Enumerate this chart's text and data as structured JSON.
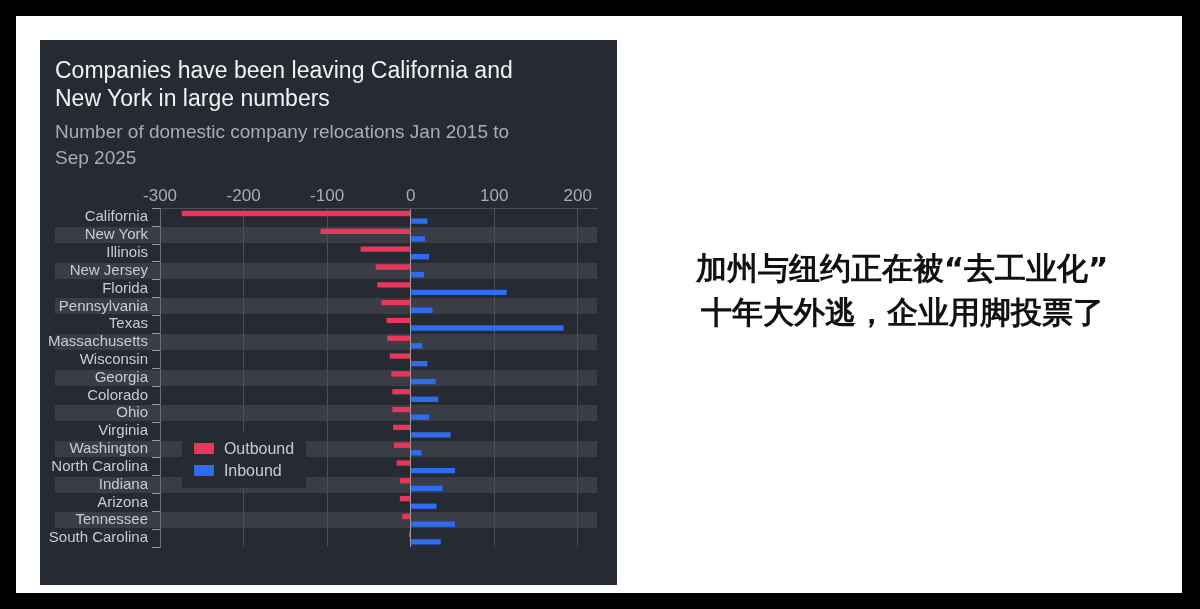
{
  "chart_data": {
    "type": "bar",
    "orientation": "horizontal",
    "title": "Companies have been leaving California and New York in large numbers",
    "subtitle": "Number of domestic company relocations Jan 2015 to Sep 2025",
    "categories": [
      "California",
      "New York",
      "Illinois",
      "New Jersey",
      "Florida",
      "Pennsylvania",
      "Texas",
      "Massachusetts",
      "Wisconsin",
      "Georgia",
      "Colorado",
      "Ohio",
      "Virginia",
      "Washington",
      "North Carolina",
      "Indiana",
      "Arizona",
      "Tennessee",
      "South Carolina"
    ],
    "series": [
      {
        "name": "Outbound",
        "color": "#e8375a",
        "values": [
          -274,
          -108,
          -60,
          -42,
          -40,
          -35,
          -29,
          -28,
          -25,
          -23,
          -22,
          -22,
          -21,
          -20,
          -17,
          -13,
          -13,
          -10,
          -2
        ]
      },
      {
        "name": "Inbound",
        "color": "#2f6cf0",
        "values": [
          20,
          17,
          22,
          16,
          115,
          26,
          183,
          14,
          20,
          30,
          33,
          22,
          48,
          13,
          53,
          38,
          31,
          53,
          36
        ]
      }
    ],
    "xlim": [
      -300,
      223
    ],
    "xticks": [
      -300,
      -200,
      -100,
      0,
      100,
      200
    ],
    "grid": "x",
    "legend": "left",
    "annotations": [
      "加州与纽约正在被“去工业化”\n十年大外逃，企业用脚投票了"
    ]
  }
}
